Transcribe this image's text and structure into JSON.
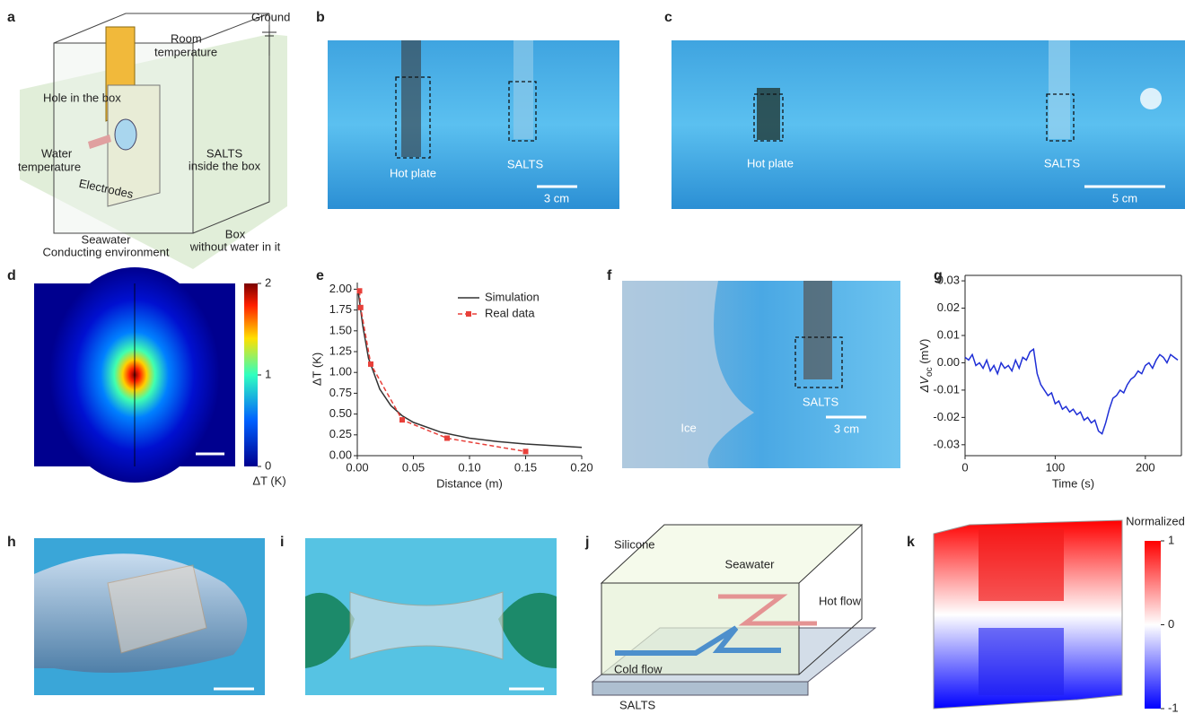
{
  "panels": {
    "letters": [
      "a",
      "b",
      "c",
      "d",
      "e",
      "f",
      "g",
      "h",
      "i",
      "j",
      "k"
    ],
    "a": {
      "labels": [
        [
          "Ground"
        ],
        [
          "Room",
          "temperature"
        ],
        [
          "Hole in the box"
        ],
        [
          "Water",
          "temperature"
        ],
        [
          "SALTS",
          "inside the box"
        ],
        [
          "Electrodes"
        ],
        [
          "Box",
          "without water in it"
        ],
        [
          "Seawater",
          "Conducting environment"
        ]
      ]
    },
    "b": {
      "labels": [
        "Hot plate",
        "SALTS"
      ],
      "scale": "3 cm"
    },
    "c": {
      "labels": [
        "Hot plate",
        "SALTS"
      ],
      "scale": "5 cm"
    },
    "d": {
      "colorbar": {
        "lim": [
          0,
          2
        ],
        "ticks": [
          0,
          1,
          2
        ],
        "label": "ΔT (K)"
      }
    },
    "f": {
      "labels": [
        "Ice",
        "SALTS"
      ],
      "scale": "3 cm"
    },
    "j": {
      "labels": [
        "Silicone",
        "Seawater",
        "Hot flow",
        "Cold flow",
        "SALTS"
      ]
    },
    "k": {
      "colorbar": {
        "lim": [
          -1,
          1
        ],
        "ticks": [
          -1,
          0,
          1
        ],
        "title": "Normalized"
      }
    }
  },
  "chart_data": [
    {
      "type": "line",
      "xlabel": "Distance (m)",
      "ylabel": "ΔT (K)",
      "xlim": [
        0,
        0.2
      ],
      "ylim": [
        0,
        2.08
      ],
      "xticks": [
        {
          "value": 0,
          "label": "0.00"
        },
        {
          "value": 0.05,
          "label": "0.05"
        },
        {
          "value": 0.1,
          "label": "0.10"
        },
        {
          "value": 0.15,
          "label": "0.15"
        },
        {
          "value": 0.2,
          "label": "0.20"
        }
      ],
      "yticks": [
        {
          "value": 0,
          "label": "0.00"
        },
        {
          "value": 0.25,
          "label": "0.25"
        },
        {
          "value": 0.5,
          "label": "0.50"
        },
        {
          "value": 0.75,
          "label": "0.75"
        },
        {
          "value": 1,
          "label": "1.00"
        },
        {
          "value": 1.25,
          "label": "1.25"
        },
        {
          "value": 1.5,
          "label": "1.50"
        },
        {
          "value": 1.75,
          "label": "1.75"
        },
        {
          "value": 2,
          "label": "2.00"
        }
      ],
      "legend": "upper right",
      "series": [
        {
          "name": "Simulation",
          "color": "#333333",
          "x": [
            0.001,
            0.005,
            0.01,
            0.02,
            0.03,
            0.04,
            0.05,
            0.075,
            0.1,
            0.125,
            0.15,
            0.175,
            0.2
          ],
          "values": [
            1.95,
            1.55,
            1.17,
            0.8,
            0.6,
            0.48,
            0.4,
            0.28,
            0.21,
            0.17,
            0.14,
            0.12,
            0.1
          ]
        },
        {
          "name": "Real data",
          "color": "#e8403a",
          "dashed": true,
          "markers": true,
          "x": [
            0.002,
            0.003,
            0.012,
            0.04,
            0.08,
            0.15
          ],
          "values": [
            1.98,
            1.78,
            1.1,
            0.43,
            0.21,
            0.05
          ]
        }
      ]
    },
    {
      "type": "line",
      "xlabel": "Time (s)",
      "ylabel": {
        "symbol": "ΔV",
        "subscript": "oc",
        "unit": " (mV)"
      },
      "xlim": [
        0,
        240
      ],
      "ylim": [
        -0.034,
        0.032
      ],
      "xticks": [
        0,
        100,
        200
      ],
      "yticks": [
        -0.03,
        -0.02,
        -0.01,
        {
          "value": 0,
          "label": "0.00"
        },
        0.01,
        0.02,
        0.03
      ],
      "series": [
        {
          "color": "#1f2fd6",
          "x": [
            0,
            4,
            8,
            12,
            16,
            20,
            24,
            28,
            32,
            36,
            40,
            44,
            48,
            52,
            56,
            60,
            64,
            68,
            72,
            76,
            80,
            84,
            88,
            92,
            96,
            100,
            104,
            108,
            112,
            116,
            120,
            124,
            128,
            132,
            136,
            140,
            144,
            148,
            152,
            156,
            160,
            164,
            168,
            172,
            176,
            180,
            184,
            188,
            192,
            196,
            200,
            204,
            208,
            212,
            216,
            220,
            224,
            228,
            232,
            236
          ],
          "values": [
            0.002,
            0.001,
            0.003,
            -0.001,
            0.0,
            -0.002,
            0.001,
            -0.003,
            -0.001,
            -0.004,
            0.0,
            -0.002,
            -0.001,
            -0.003,
            0.001,
            -0.002,
            0.002,
            0.001,
            0.004,
            0.005,
            -0.004,
            -0.008,
            -0.01,
            -0.012,
            -0.011,
            -0.015,
            -0.014,
            -0.017,
            -0.016,
            -0.018,
            -0.017,
            -0.019,
            -0.018,
            -0.021,
            -0.02,
            -0.022,
            -0.021,
            -0.025,
            -0.026,
            -0.022,
            -0.017,
            -0.013,
            -0.012,
            -0.01,
            -0.011,
            -0.008,
            -0.006,
            -0.005,
            -0.003,
            -0.004,
            -0.001,
            0.0,
            -0.002,
            0.001,
            0.003,
            0.002,
            0.0,
            0.003,
            0.002,
            0.001
          ]
        }
      ]
    }
  ]
}
